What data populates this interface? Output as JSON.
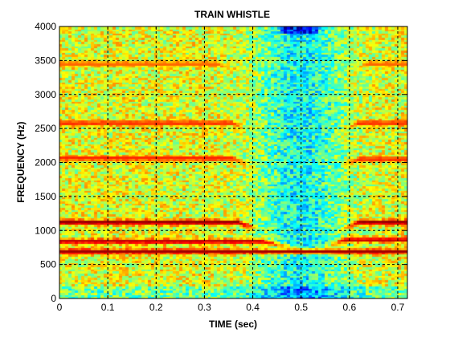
{
  "chart_data": {
    "type": "heatmap",
    "title": "TRAIN WHISTLE",
    "xlabel": "TIME (sec)",
    "ylabel": "FREQUENCY (Hz)",
    "xlim": [
      0,
      0.72
    ],
    "ylim": [
      0,
      4000
    ],
    "x_ticks": [
      "0",
      "0.1",
      "0.2",
      "0.3",
      "0.4",
      "0.5",
      "0.6",
      "0.7"
    ],
    "x_tick_values": [
      0,
      0.1,
      0.2,
      0.3,
      0.4,
      0.5,
      0.6,
      0.7
    ],
    "y_ticks": [
      "0",
      "500",
      "1000",
      "1500",
      "2000",
      "2500",
      "3000",
      "3500",
      "4000"
    ],
    "y_tick_values": [
      0,
      500,
      1000,
      1500,
      2000,
      2500,
      3000,
      3500,
      4000
    ],
    "grid": true,
    "colormap": "jet",
    "background_level": 0.6,
    "quiet_region": {
      "center": 0.5,
      "strength": 0.22
    },
    "bands": [
      {
        "name": "",
        "freq_before": 700,
        "freq_after": 700,
        "t_fade_start": null,
        "t_fade_end": null,
        "t_return": null,
        "strength": 0.97
      },
      {
        "name": "",
        "freq_before": 850,
        "freq_after": 870,
        "t_fade_start": 0.42,
        "t_fade_end": 0.5,
        "t_return": 0.55,
        "strength": 0.96
      },
      {
        "name": "",
        "freq_before": 1130,
        "freq_after": 1130,
        "t_fade_start": 0.37,
        "t_fade_end": 0.42,
        "t_return": 0.58,
        "strength": 1.0
      },
      {
        "name": "",
        "freq_before": 2070,
        "freq_after": 2060,
        "t_fade_start": 0.36,
        "t_fade_end": 0.4,
        "t_return": 0.58,
        "strength": 0.85
      },
      {
        "name": "",
        "freq_before": 2590,
        "freq_after": 2590,
        "t_fade_start": 0.36,
        "t_fade_end": 0.39,
        "t_return": 0.58,
        "strength": 0.84
      },
      {
        "name": "",
        "freq_before": 3460,
        "freq_after": 3460,
        "t_fade_start": 0.33,
        "t_fade_end": 0.37,
        "t_return": 0.6,
        "strength": 0.78
      }
    ]
  }
}
